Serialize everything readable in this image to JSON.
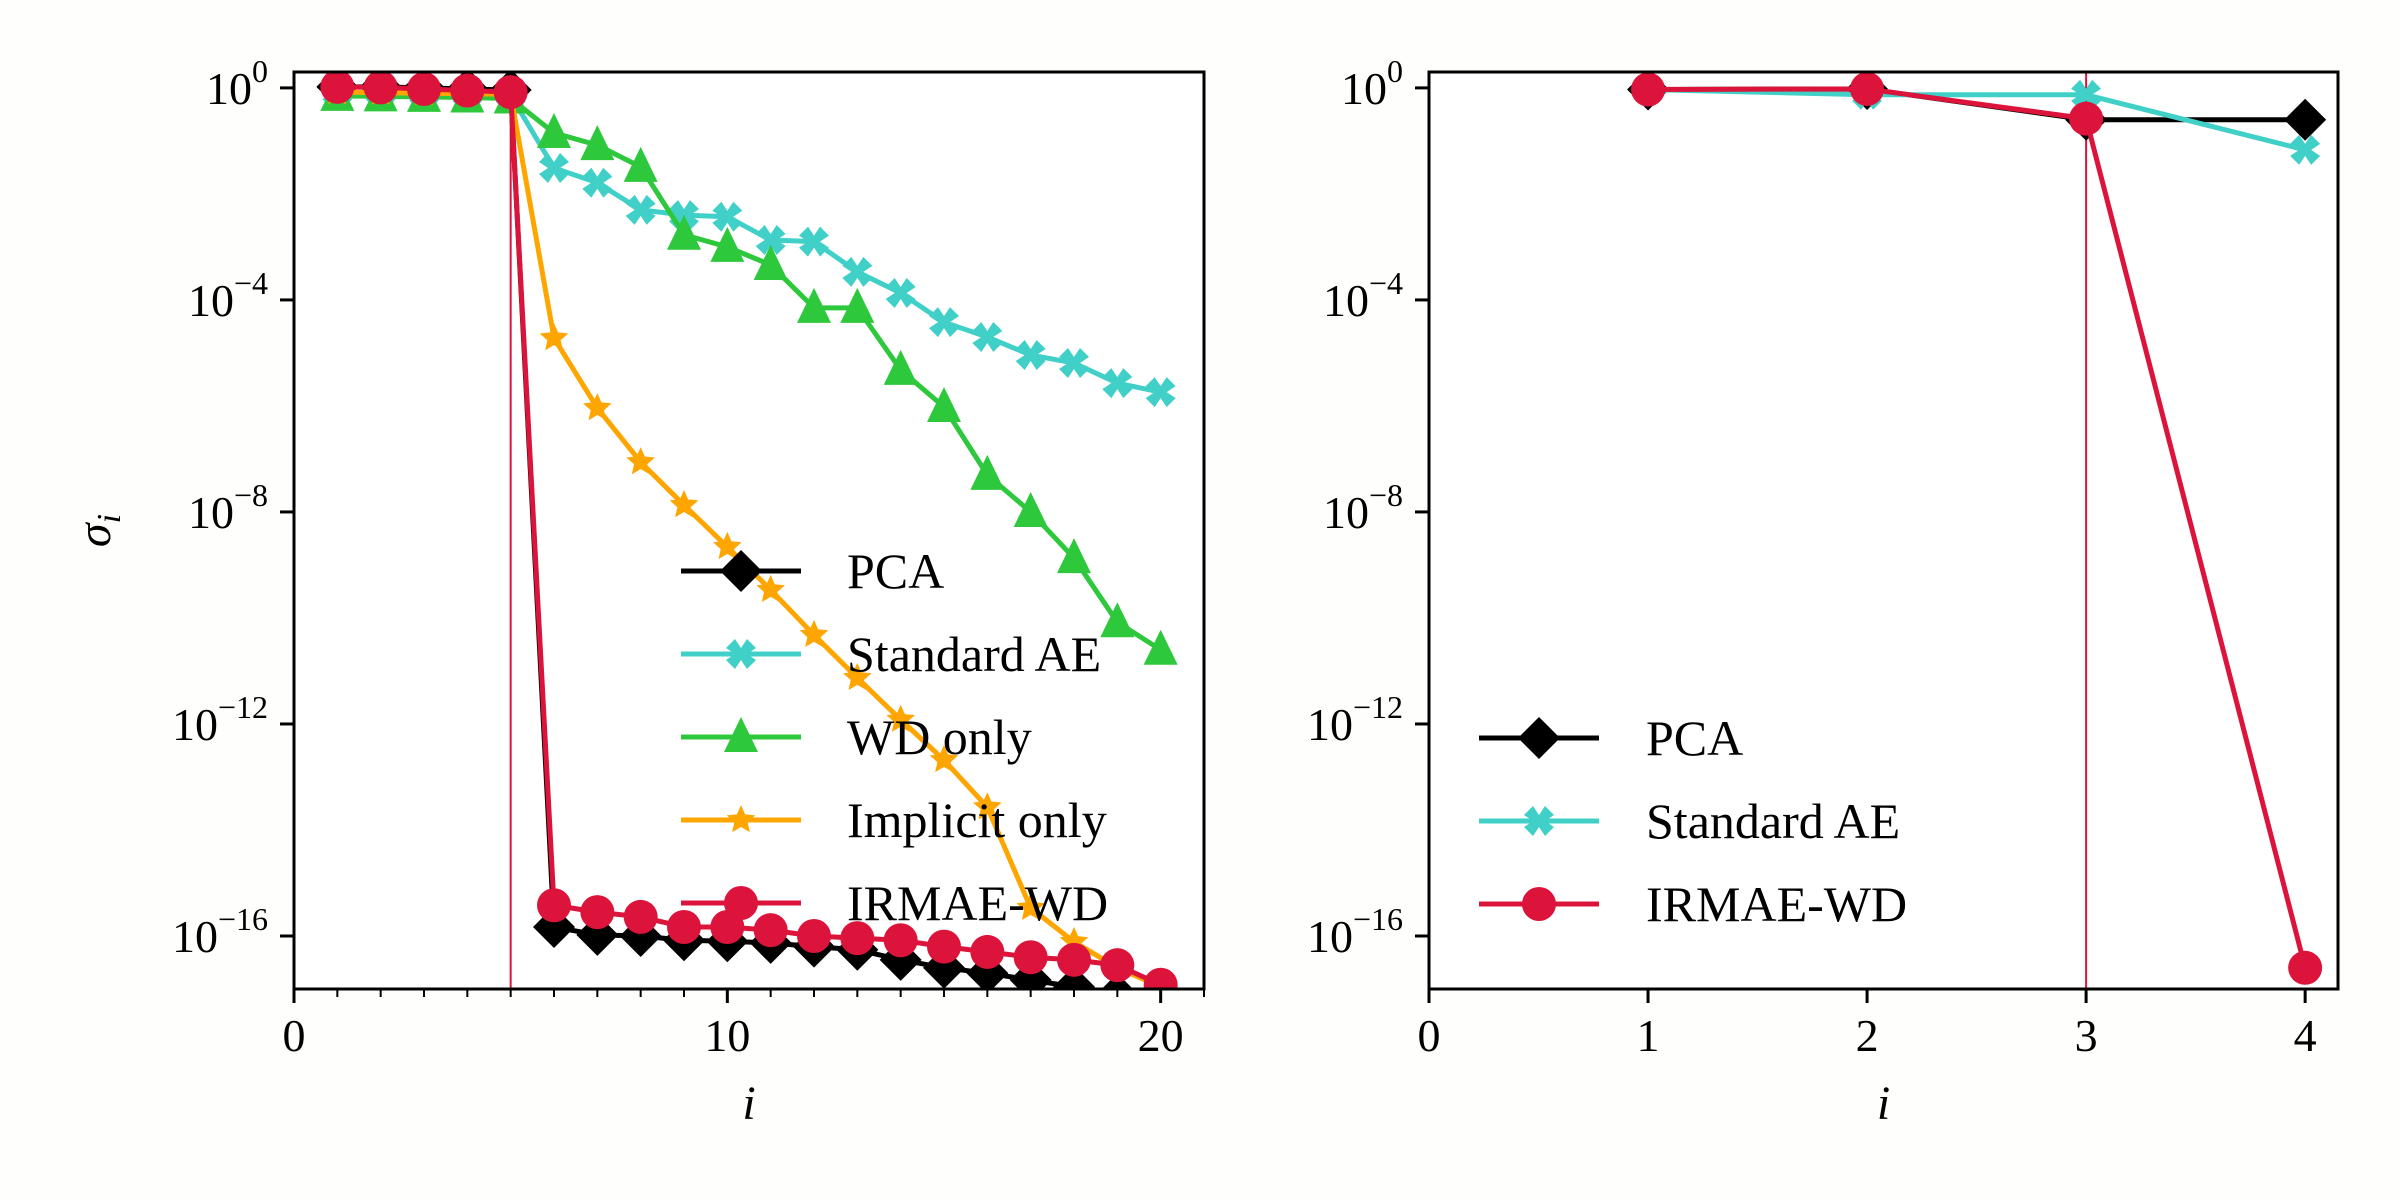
{
  "chart_data": [
    {
      "type": "line",
      "title": "",
      "xlabel": "i",
      "ylabel": "σ_i",
      "yscale": "log",
      "xlim": [
        0,
        21
      ],
      "ylim_exponent": [
        -17,
        0.3
      ],
      "xticks": [
        0,
        10,
        20
      ],
      "xticks_minor_step": 1,
      "yticks_exponent": [
        0,
        -4,
        -8,
        -12,
        -16
      ],
      "vline": {
        "x": 5,
        "color": "#dc143c"
      },
      "legend": {
        "placement": "lower-center",
        "entries": [
          "PCA",
          "Standard AE",
          "WD only",
          "Implicit only",
          "IRMAE-WD"
        ]
      },
      "x": [
        1,
        2,
        3,
        4,
        5,
        6,
        7,
        8,
        9,
        10,
        11,
        12,
        13,
        14,
        15,
        16,
        17,
        18,
        19,
        20
      ],
      "series": [
        {
          "name": "PCA",
          "color": "#000000",
          "marker": "diamond",
          "log10_values": [
            0.02,
            0.02,
            0.0,
            -0.02,
            -0.04,
            -15.83,
            -15.98,
            -16.0,
            -16.08,
            -16.1,
            -16.13,
            -16.2,
            -16.26,
            -16.45,
            -16.6,
            -16.7,
            -16.83,
            -16.96,
            -17.1,
            -17.2
          ]
        },
        {
          "name": "Standard AE",
          "color": "#40d0c8",
          "marker": "x",
          "log10_values": [
            -0.1,
            -0.1,
            -0.12,
            -0.13,
            -0.14,
            -1.51,
            -1.79,
            -2.3,
            -2.4,
            -2.43,
            -2.87,
            -2.9,
            -3.47,
            -3.87,
            -4.42,
            -4.7,
            -5.04,
            -5.19,
            -5.57,
            -5.74
          ]
        },
        {
          "name": "WD only",
          "color": "#2ec83c",
          "marker": "triangle",
          "log10_values": [
            -0.15,
            -0.16,
            -0.17,
            -0.18,
            -0.2,
            -0.85,
            -1.08,
            -1.49,
            -2.77,
            -3.0,
            -3.34,
            -4.15,
            -4.15,
            -5.32,
            -6.02,
            -7.3,
            -8.0,
            -8.87,
            -10.08,
            -10.6
          ]
        },
        {
          "name": "Implicit only",
          "color": "#ffa500",
          "marker": "star",
          "log10_values": [
            -0.08,
            -0.09,
            -0.1,
            -0.11,
            -0.12,
            -4.72,
            -6.04,
            -7.06,
            -7.87,
            -8.66,
            -9.47,
            -10.32,
            -11.13,
            -11.92,
            -12.68,
            -13.57,
            -15.47,
            -16.11,
            -16.6,
            -16.96
          ]
        },
        {
          "name": "IRMAE-WD",
          "color": "#dc143c",
          "marker": "circle",
          "log10_values": [
            0.02,
            0.01,
            -0.02,
            -0.05,
            -0.08,
            -15.42,
            -15.55,
            -15.64,
            -15.83,
            -15.83,
            -15.89,
            -16.0,
            -16.04,
            -16.08,
            -16.2,
            -16.3,
            -16.4,
            -16.45,
            -16.55,
            -16.92
          ]
        }
      ]
    },
    {
      "type": "line",
      "title": "",
      "xlabel": "i",
      "ylabel": "",
      "yscale": "log",
      "xlim": [
        0,
        4.15
      ],
      "ylim_exponent": [
        -17,
        0.3
      ],
      "xticks": [
        0,
        1,
        2,
        3,
        4
      ],
      "yticks_exponent": [
        0,
        -4,
        -8,
        -12,
        -16
      ],
      "vline": {
        "x": 3,
        "color": "#dc143c"
      },
      "legend": {
        "placement": "lower-left",
        "entries": [
          "PCA",
          "Standard AE",
          "IRMAE-WD"
        ]
      },
      "x": [
        1,
        2,
        3,
        4
      ],
      "series": [
        {
          "name": "PCA",
          "color": "#000000",
          "marker": "diamond",
          "log10_values": [
            -0.03,
            -0.02,
            -0.6,
            -0.6
          ]
        },
        {
          "name": "Standard AE",
          "color": "#40d0c8",
          "marker": "x",
          "log10_values": [
            -0.03,
            -0.13,
            -0.13,
            -1.17
          ]
        },
        {
          "name": "IRMAE-WD",
          "color": "#dc143c",
          "marker": "circle",
          "log10_values": [
            -0.03,
            -0.02,
            -0.58,
            -16.6
          ]
        }
      ]
    }
  ]
}
